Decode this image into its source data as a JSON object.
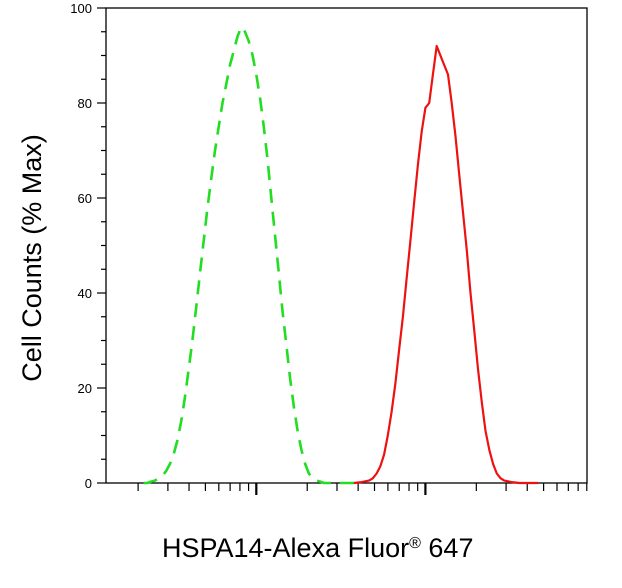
{
  "chart_data": {
    "type": "line",
    "ylabel": "Cell Counts (% Max)",
    "xlabel_main": "HSPA14-Alexa Fluor",
    "xlabel_sup": "®",
    "xlabel_tail": " 647",
    "ylim": [
      0,
      100
    ],
    "yticks": [
      0,
      20,
      40,
      60,
      80,
      100
    ],
    "ytick_labels": [
      "0",
      "20",
      "40",
      "60",
      "80",
      "100"
    ],
    "xscale": "log",
    "xtick_labels": [],
    "grid": false,
    "series": [
      {
        "style": "dashed",
        "color": "#22dd22",
        "x": [
          10,
          11,
          12,
          13,
          14,
          15,
          16,
          17,
          18,
          19,
          20,
          21,
          22,
          23,
          24,
          25,
          26,
          27,
          28,
          29,
          30,
          31,
          32,
          33,
          34,
          35,
          36,
          37,
          38,
          39,
          40,
          41,
          42,
          43,
          44,
          45,
          46,
          47,
          48,
          49,
          50,
          51,
          52,
          53,
          54,
          55,
          56,
          57,
          58,
          59,
          60,
          61,
          62,
          63,
          64,
          65,
          66
        ],
        "y": [
          0,
          0,
          0.3,
          0.5,
          1,
          1.5,
          2.5,
          4,
          6,
          9,
          13,
          18,
          24,
          30,
          37,
          44,
          51,
          58,
          64,
          70,
          75,
          80,
          84,
          88,
          91,
          94,
          96,
          95,
          93,
          90,
          86,
          81,
          75,
          68,
          60,
          52,
          44,
          36,
          29,
          22,
          16,
          11,
          7,
          4,
          2,
          1,
          0.5,
          0.3,
          0,
          0,
          0,
          0,
          0,
          0,
          0,
          0,
          0
        ]
      },
      {
        "style": "solid",
        "color": "#ee1111",
        "x": [
          66,
          68,
          70,
          71,
          72,
          73,
          74,
          75,
          76,
          77,
          78,
          79,
          80,
          81,
          82,
          83,
          84,
          85,
          86,
          87,
          88,
          89,
          90,
          91,
          92,
          93,
          94,
          95,
          96,
          97,
          98,
          99,
          100,
          101,
          102,
          103,
          104,
          105,
          106,
          108,
          110,
          112,
          115
        ],
        "y": [
          0,
          0.2,
          0.5,
          1,
          2,
          3.5,
          6,
          10,
          15,
          21,
          28,
          35,
          43,
          51,
          59,
          67,
          74,
          79,
          80,
          86,
          92,
          90,
          88,
          86,
          80,
          73,
          65,
          57,
          49,
          40,
          32,
          24,
          17,
          11,
          7,
          4,
          2,
          1,
          0.5,
          0.2,
          0,
          0,
          0
        ]
      }
    ]
  }
}
